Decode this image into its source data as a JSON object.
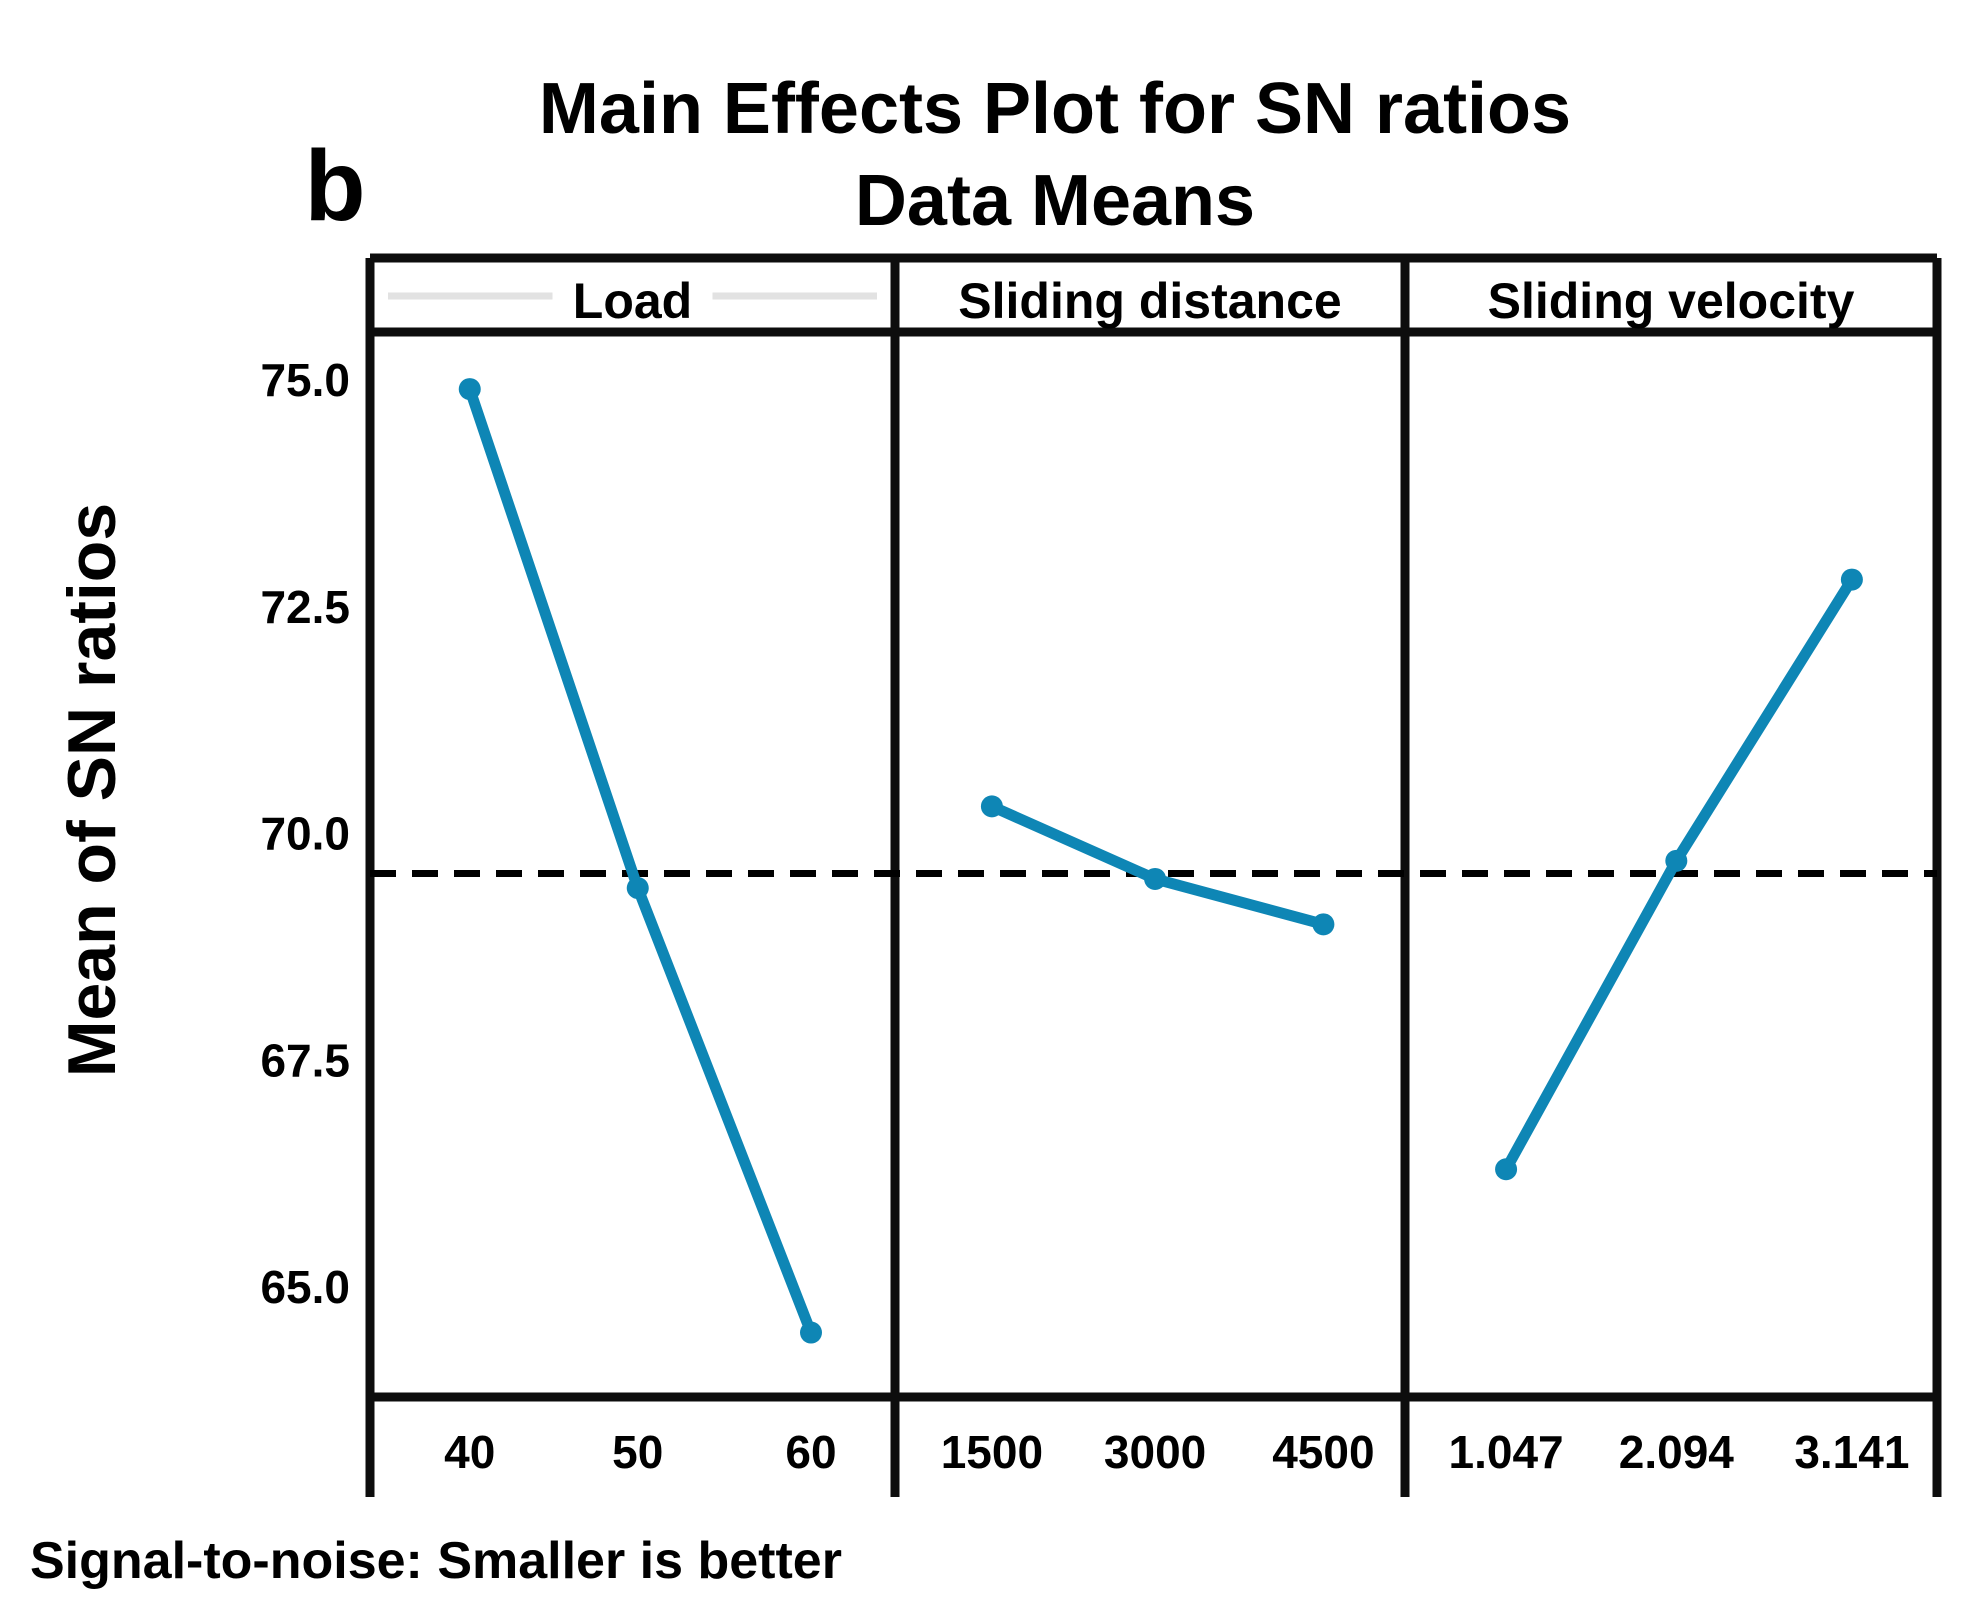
{
  "chart_data": {
    "type": "line",
    "figure_label": "b",
    "title": "Main Effects Plot for SN ratios",
    "subtitle": "Data Means",
    "ylabel": "Mean of SN ratios",
    "caption": "Signal-to-noise: Smaller is better",
    "ytick_labels": [
      "75.0",
      "72.5",
      "70.0",
      "67.5",
      "65.0"
    ],
    "ytick_values": [
      75.0,
      72.5,
      70.0,
      67.5,
      65.0
    ],
    "ylim": [
      63.8,
      75.6
    ],
    "grid": false,
    "legend": "none",
    "series_color": "#0e86b5",
    "mean_line": {
      "style": "dashed",
      "color": "#000000",
      "value": 69.56
    },
    "panels": [
      {
        "header": "Load",
        "categories": [
          "40",
          "50",
          "60"
        ],
        "values": [
          74.9,
          69.4,
          64.5
        ]
      },
      {
        "header": "Sliding distance",
        "categories": [
          "1500",
          "3000",
          "4500"
        ],
        "values": [
          70.3,
          69.5,
          69.0
        ]
      },
      {
        "header": "Sliding velocity",
        "categories": [
          "1.047",
          "2.094",
          "3.141"
        ],
        "values": [
          66.3,
          69.7,
          72.8
        ]
      }
    ]
  }
}
